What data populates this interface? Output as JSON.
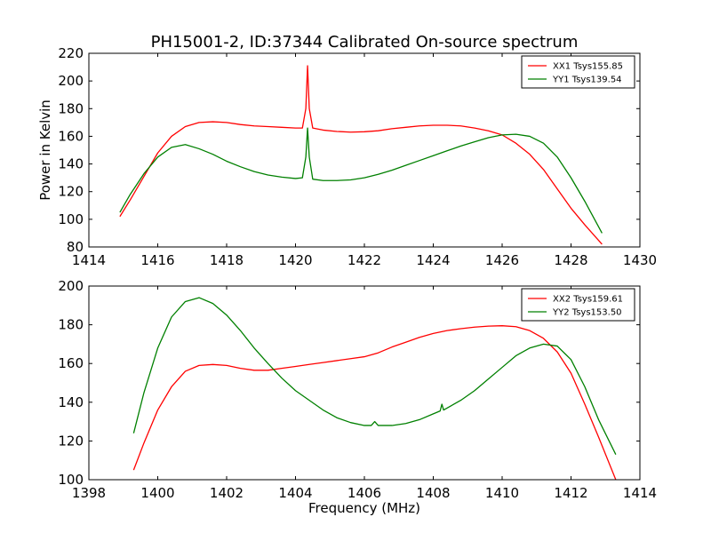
{
  "figure": {
    "title": "PH15001-2, ID:37344 Calibrated On-source spectrum"
  },
  "chart_data": [
    {
      "type": "line",
      "title": "PH15001-2, ID:37344 Calibrated On-source spectrum",
      "xlabel": "",
      "ylabel": "Power in Kelvin",
      "xlim": [
        1414,
        1430
      ],
      "ylim": [
        80,
        220
      ],
      "xticks": [
        "1414",
        "1416",
        "1418",
        "1420",
        "1422",
        "1424",
        "1426",
        "1428",
        "1430"
      ],
      "yticks": [
        "80",
        "100",
        "120",
        "140",
        "160",
        "180",
        "200",
        "220"
      ],
      "legend_position": "top-right",
      "grid": false,
      "series": [
        {
          "name": "XX1 Tsys155.85",
          "color": "#ff0000",
          "x": [
            1414.9,
            1415.2,
            1415.6,
            1416.0,
            1416.4,
            1416.8,
            1417.2,
            1417.6,
            1418.0,
            1418.4,
            1418.8,
            1419.2,
            1419.6,
            1420.0,
            1420.2,
            1420.3,
            1420.35,
            1420.4,
            1420.5,
            1420.8,
            1421.2,
            1421.6,
            1422.0,
            1422.4,
            1422.8,
            1423.2,
            1423.6,
            1424.0,
            1424.4,
            1424.8,
            1425.2,
            1425.6,
            1426.0,
            1426.4,
            1426.8,
            1427.2,
            1427.6,
            1428.0,
            1428.4,
            1428.9
          ],
          "y": [
            102,
            114,
            131,
            148,
            160,
            167,
            170,
            170.5,
            170,
            168.5,
            167.5,
            167,
            166.5,
            166,
            166,
            180,
            211,
            180,
            166,
            164.5,
            163.5,
            163,
            163.3,
            164,
            165.5,
            166.5,
            167.5,
            168,
            168,
            167.5,
            166,
            164,
            161,
            155,
            147,
            136,
            122,
            108,
            96,
            82
          ]
        },
        {
          "name": "YY1 Tsys139.54",
          "color": "#008000",
          "x": [
            1414.9,
            1415.2,
            1415.6,
            1416.0,
            1416.4,
            1416.8,
            1417.2,
            1417.6,
            1418.0,
            1418.4,
            1418.8,
            1419.2,
            1419.6,
            1420.0,
            1420.2,
            1420.3,
            1420.35,
            1420.4,
            1420.5,
            1420.8,
            1421.2,
            1421.6,
            1422.0,
            1422.4,
            1422.8,
            1423.2,
            1423.6,
            1424.0,
            1424.4,
            1424.8,
            1425.2,
            1425.6,
            1426.0,
            1426.4,
            1426.8,
            1427.2,
            1427.6,
            1428.0,
            1428.4,
            1428.9
          ],
          "y": [
            105,
            118,
            133,
            145,
            152,
            154,
            151,
            147,
            142,
            138,
            134.5,
            132,
            130.5,
            129.5,
            130,
            145,
            166,
            145,
            129,
            128,
            128,
            128.5,
            130,
            132.5,
            135.5,
            139,
            142.5,
            146,
            149.5,
            153,
            156,
            159,
            161,
            161.5,
            160,
            155,
            145,
            130,
            113,
            90
          ]
        }
      ]
    },
    {
      "type": "line",
      "title": "",
      "xlabel": "Frequency (MHz)",
      "ylabel": "",
      "xlim": [
        1398,
        1414
      ],
      "ylim": [
        100,
        200
      ],
      "xticks": [
        "1398",
        "1400",
        "1402",
        "1404",
        "1406",
        "1408",
        "1410",
        "1412",
        "1414"
      ],
      "yticks": [
        "100",
        "120",
        "140",
        "160",
        "180",
        "200"
      ],
      "legend_position": "top-right",
      "grid": false,
      "series": [
        {
          "name": "XX2 Tsys159.61",
          "color": "#ff0000",
          "x": [
            1399.3,
            1399.6,
            1400.0,
            1400.4,
            1400.8,
            1401.2,
            1401.6,
            1402.0,
            1402.4,
            1402.8,
            1403.2,
            1403.6,
            1404.0,
            1404.4,
            1404.8,
            1405.2,
            1405.6,
            1406.0,
            1406.4,
            1406.8,
            1407.2,
            1407.6,
            1408.0,
            1408.4,
            1408.8,
            1409.2,
            1409.6,
            1410.0,
            1410.4,
            1410.8,
            1411.2,
            1411.6,
            1412.0,
            1412.4,
            1412.8,
            1413.3
          ],
          "y": [
            105,
            119,
            136,
            148,
            156,
            159,
            159.5,
            159,
            157.5,
            156.5,
            156.5,
            157.5,
            158.5,
            159.5,
            160.5,
            161.5,
            162.5,
            163.5,
            165.5,
            168.5,
            171,
            173.5,
            175.5,
            177,
            178,
            178.8,
            179.3,
            179.5,
            179,
            177,
            173,
            166,
            155,
            139,
            122,
            100
          ]
        },
        {
          "name": "YY2 Tsys153.50",
          "color": "#008000",
          "x": [
            1399.3,
            1399.6,
            1400.0,
            1400.4,
            1400.8,
            1401.2,
            1401.6,
            1402.0,
            1402.4,
            1402.8,
            1403.2,
            1403.6,
            1404.0,
            1404.4,
            1404.8,
            1405.2,
            1405.6,
            1406.0,
            1406.2,
            1406.3,
            1406.4,
            1406.8,
            1407.2,
            1407.6,
            1408.0,
            1408.2,
            1408.25,
            1408.3,
            1408.8,
            1409.2,
            1409.6,
            1410.0,
            1410.4,
            1410.8,
            1411.2,
            1411.6,
            1412.0,
            1412.4,
            1412.8,
            1413.3
          ],
          "y": [
            124,
            145,
            168,
            184,
            192,
            194,
            191,
            185,
            177,
            168,
            160,
            152.5,
            146,
            141,
            136,
            132,
            129.5,
            128,
            128,
            130,
            128,
            128,
            129,
            131,
            134,
            135.5,
            139,
            136,
            141,
            146,
            152,
            158,
            164,
            168,
            170,
            169,
            162,
            148,
            131,
            113
          ]
        }
      ]
    }
  ]
}
